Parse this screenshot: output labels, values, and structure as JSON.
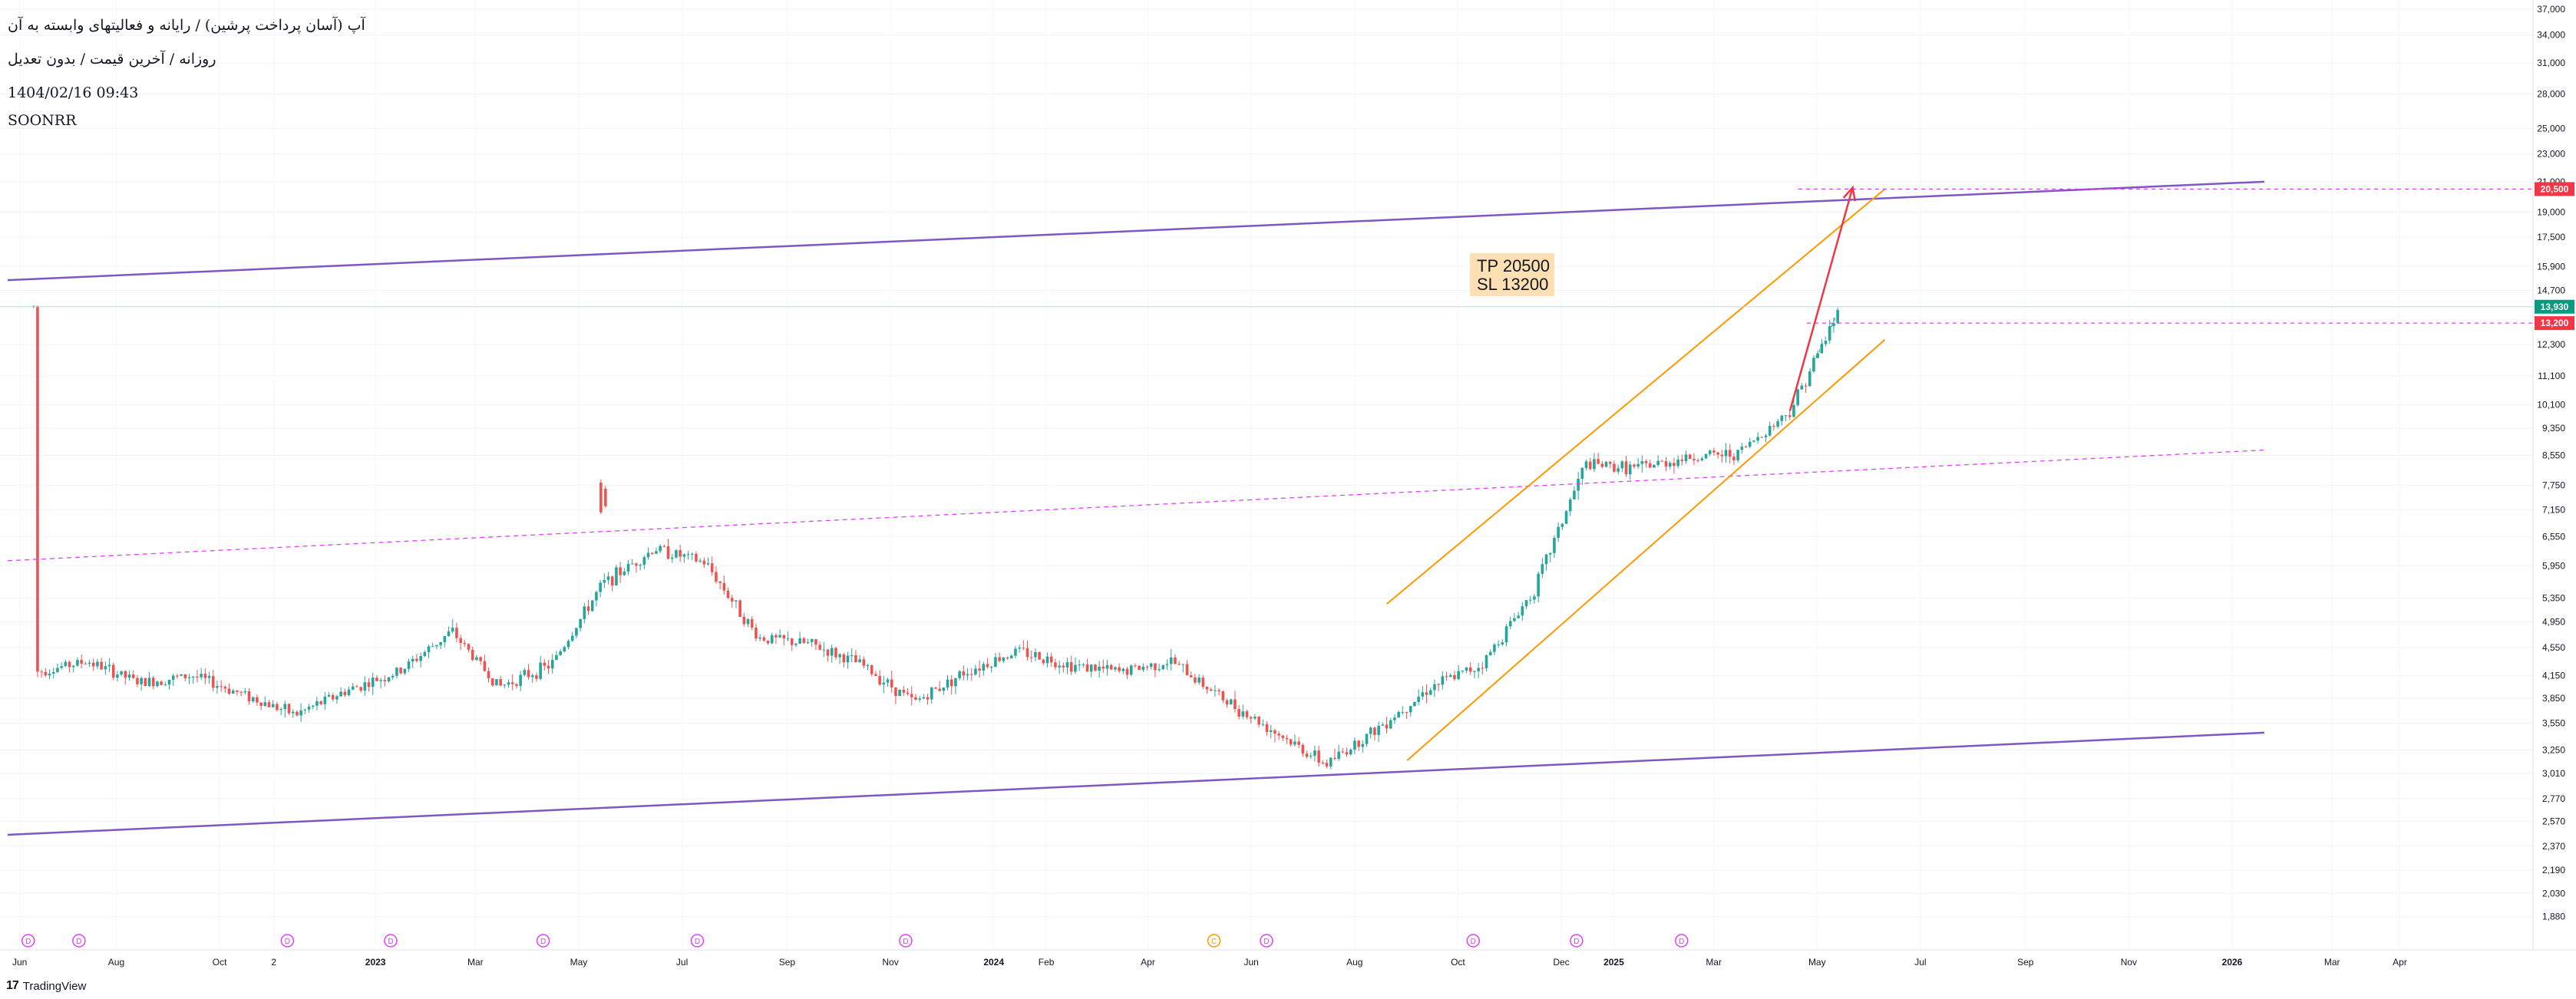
{
  "header": {
    "title": "آپ (آسان پرداخت پرشین) / رایانه و فعالیتهای وابسته به آن",
    "subtitle": "روزانه / آخرین قیمت / بدون تعدیل",
    "datetime": "1404/02/16 09:43",
    "symbol": "SOONRR"
  },
  "brand": {
    "name": "TradingView",
    "logo_text": "17"
  },
  "colors": {
    "up": "#26a69a",
    "down": "#ef5350",
    "channel": "#7e57c2",
    "trend": "#ff9800",
    "dashed": "#e040fb",
    "arrow": "#f23645",
    "current_price": "#089981"
  },
  "annotation": {
    "line1": "TP 20500",
    "line2": "SL 13200"
  },
  "price_labels": {
    "tp": "20,500",
    "current": "13,930",
    "sl": "13,200"
  },
  "chart_data": {
    "type": "candlestick",
    "scale": "log",
    "ylim": [
      1800,
      37000
    ],
    "y_ticks": [
      "37,000",
      "34,000",
      "31,000",
      "28,000",
      "25,000",
      "23,000",
      "21,000",
      "19,000",
      "17,500",
      "15,900",
      "14,700",
      "12,300",
      "11,100",
      "10,100",
      "9,350",
      "8,550",
      "7,750",
      "7,150",
      "6,550",
      "5,950",
      "5,350",
      "4,950",
      "4,550",
      "4,150",
      "3,850",
      "3,550",
      "3,250",
      "3,010",
      "2,770",
      "2,570",
      "2,370",
      "2,190",
      "2,030",
      "1,880"
    ],
    "x_labels": [
      "Jun",
      "Aug",
      "Oct",
      "2",
      "2023",
      "Mar",
      "May",
      "Jul",
      "Sep",
      "Nov",
      "2024",
      "Feb",
      "Apr",
      "Jun",
      "Aug",
      "Oct",
      "Dec",
      "2025",
      "Mar",
      "May",
      "Jul",
      "Sep",
      "Nov",
      "2026",
      "Mar",
      "Apr"
    ],
    "bold_x_labels": [
      "2023",
      "2024",
      "2025",
      "2026"
    ],
    "price_path": [
      [
        "2022-06",
        4200
      ],
      [
        "2022-07",
        4350
      ],
      [
        "2022-08",
        4050
      ],
      [
        "2022-09",
        4150
      ],
      [
        "2022-10",
        3900
      ],
      [
        "2022-11",
        3650
      ],
      [
        "2022-12",
        3950
      ],
      [
        "2023-01",
        4200
      ],
      [
        "2023-02",
        4800
      ],
      [
        "2023-03",
        4000
      ],
      [
        "2023-04",
        4300
      ],
      [
        "2023-05",
        5600
      ],
      [
        "2023-06",
        6300
      ],
      [
        "2023-07",
        6000
      ],
      [
        "2023-08",
        4700
      ],
      [
        "2023-09",
        4600
      ],
      [
        "2023-10",
        4300
      ],
      [
        "2023-11",
        3800
      ],
      [
        "2023-12",
        4200
      ],
      [
        "2024-01",
        4500
      ],
      [
        "2024-02",
        4300
      ],
      [
        "2024-03",
        4200
      ],
      [
        "2024-04",
        4350
      ],
      [
        "2024-05",
        3850
      ],
      [
        "2024-06",
        3450
      ],
      [
        "2024-07",
        3100
      ],
      [
        "2024-08",
        3500
      ],
      [
        "2024-09",
        4000
      ],
      [
        "2024-10",
        4300
      ],
      [
        "2024-11",
        5500
      ],
      [
        "2024-12",
        8300
      ],
      [
        "2025-01",
        8200
      ],
      [
        "2025-02",
        8500
      ],
      [
        "2025-03",
        8600
      ],
      [
        "2025-04",
        9900
      ],
      [
        "2025-05",
        13930
      ]
    ],
    "spike": {
      "date": "2023-05",
      "high": 7900,
      "low": 7200
    },
    "tp": 20500,
    "sl": 13200,
    "current": 13930
  },
  "event_markers": [
    {
      "label": "D",
      "date": "2022-06",
      "type": "dividend"
    },
    {
      "label": "D",
      "date": "2022-07",
      "type": "dividend"
    },
    {
      "label": "D",
      "date": "2022-11",
      "type": "dividend"
    },
    {
      "label": "D",
      "date": "2023-01",
      "type": "dividend"
    },
    {
      "label": "D",
      "date": "2023-04",
      "type": "dividend"
    },
    {
      "label": "D",
      "date": "2023-07",
      "type": "dividend"
    },
    {
      "label": "D",
      "date": "2023-11",
      "type": "dividend"
    },
    {
      "label": "C",
      "date": "2024-05",
      "type": "split"
    },
    {
      "label": "D",
      "date": "2024-06",
      "type": "dividend"
    },
    {
      "label": "D",
      "date": "2024-10",
      "type": "dividend"
    },
    {
      "label": "D",
      "date": "2024-12",
      "type": "dividend"
    },
    {
      "label": "D",
      "date": "2025-02",
      "type": "dividend"
    }
  ]
}
